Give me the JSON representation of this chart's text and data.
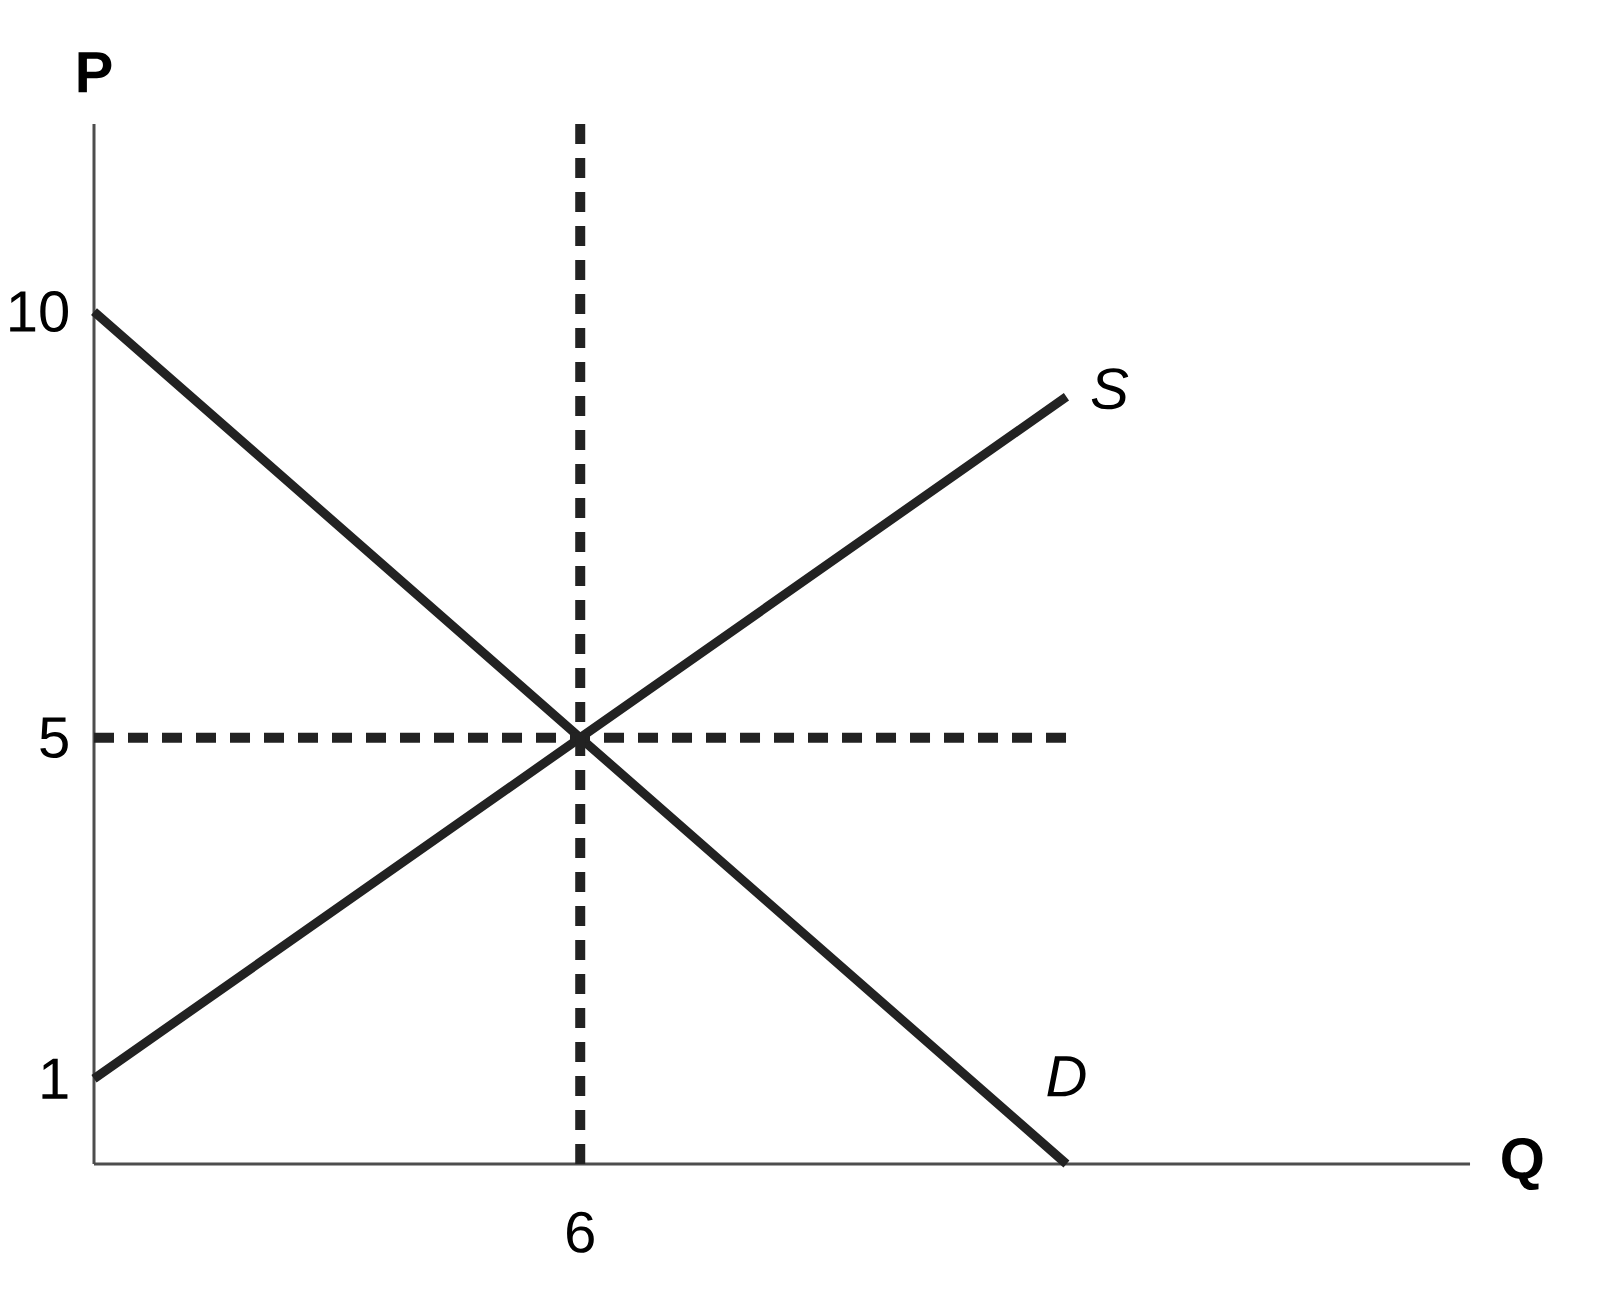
{
  "chart_data": {
    "type": "line",
    "xlabel": "Q",
    "ylabel": "P",
    "categories": [
      null,
      "6",
      null
    ],
    "series": [
      {
        "name": "S",
        "color": "#222222",
        "values": [
          1,
          5,
          9
        ]
      },
      {
        "name": "D",
        "color": "#222222",
        "values": [
          10,
          5,
          0
        ]
      },
      {
        "color": "#222222",
        "values": [
          5,
          5,
          5
        ],
        "line_style": "dashed"
      }
    ],
    "ref_lines": [
      {
        "axis": "x",
        "value": "6",
        "color": "#222222",
        "line_style": "dashed"
      }
    ],
    "ylim": [
      0,
      12.2
    ],
    "yticks": [
      1,
      5,
      10
    ],
    "marker": "none",
    "line_style": "solid"
  }
}
